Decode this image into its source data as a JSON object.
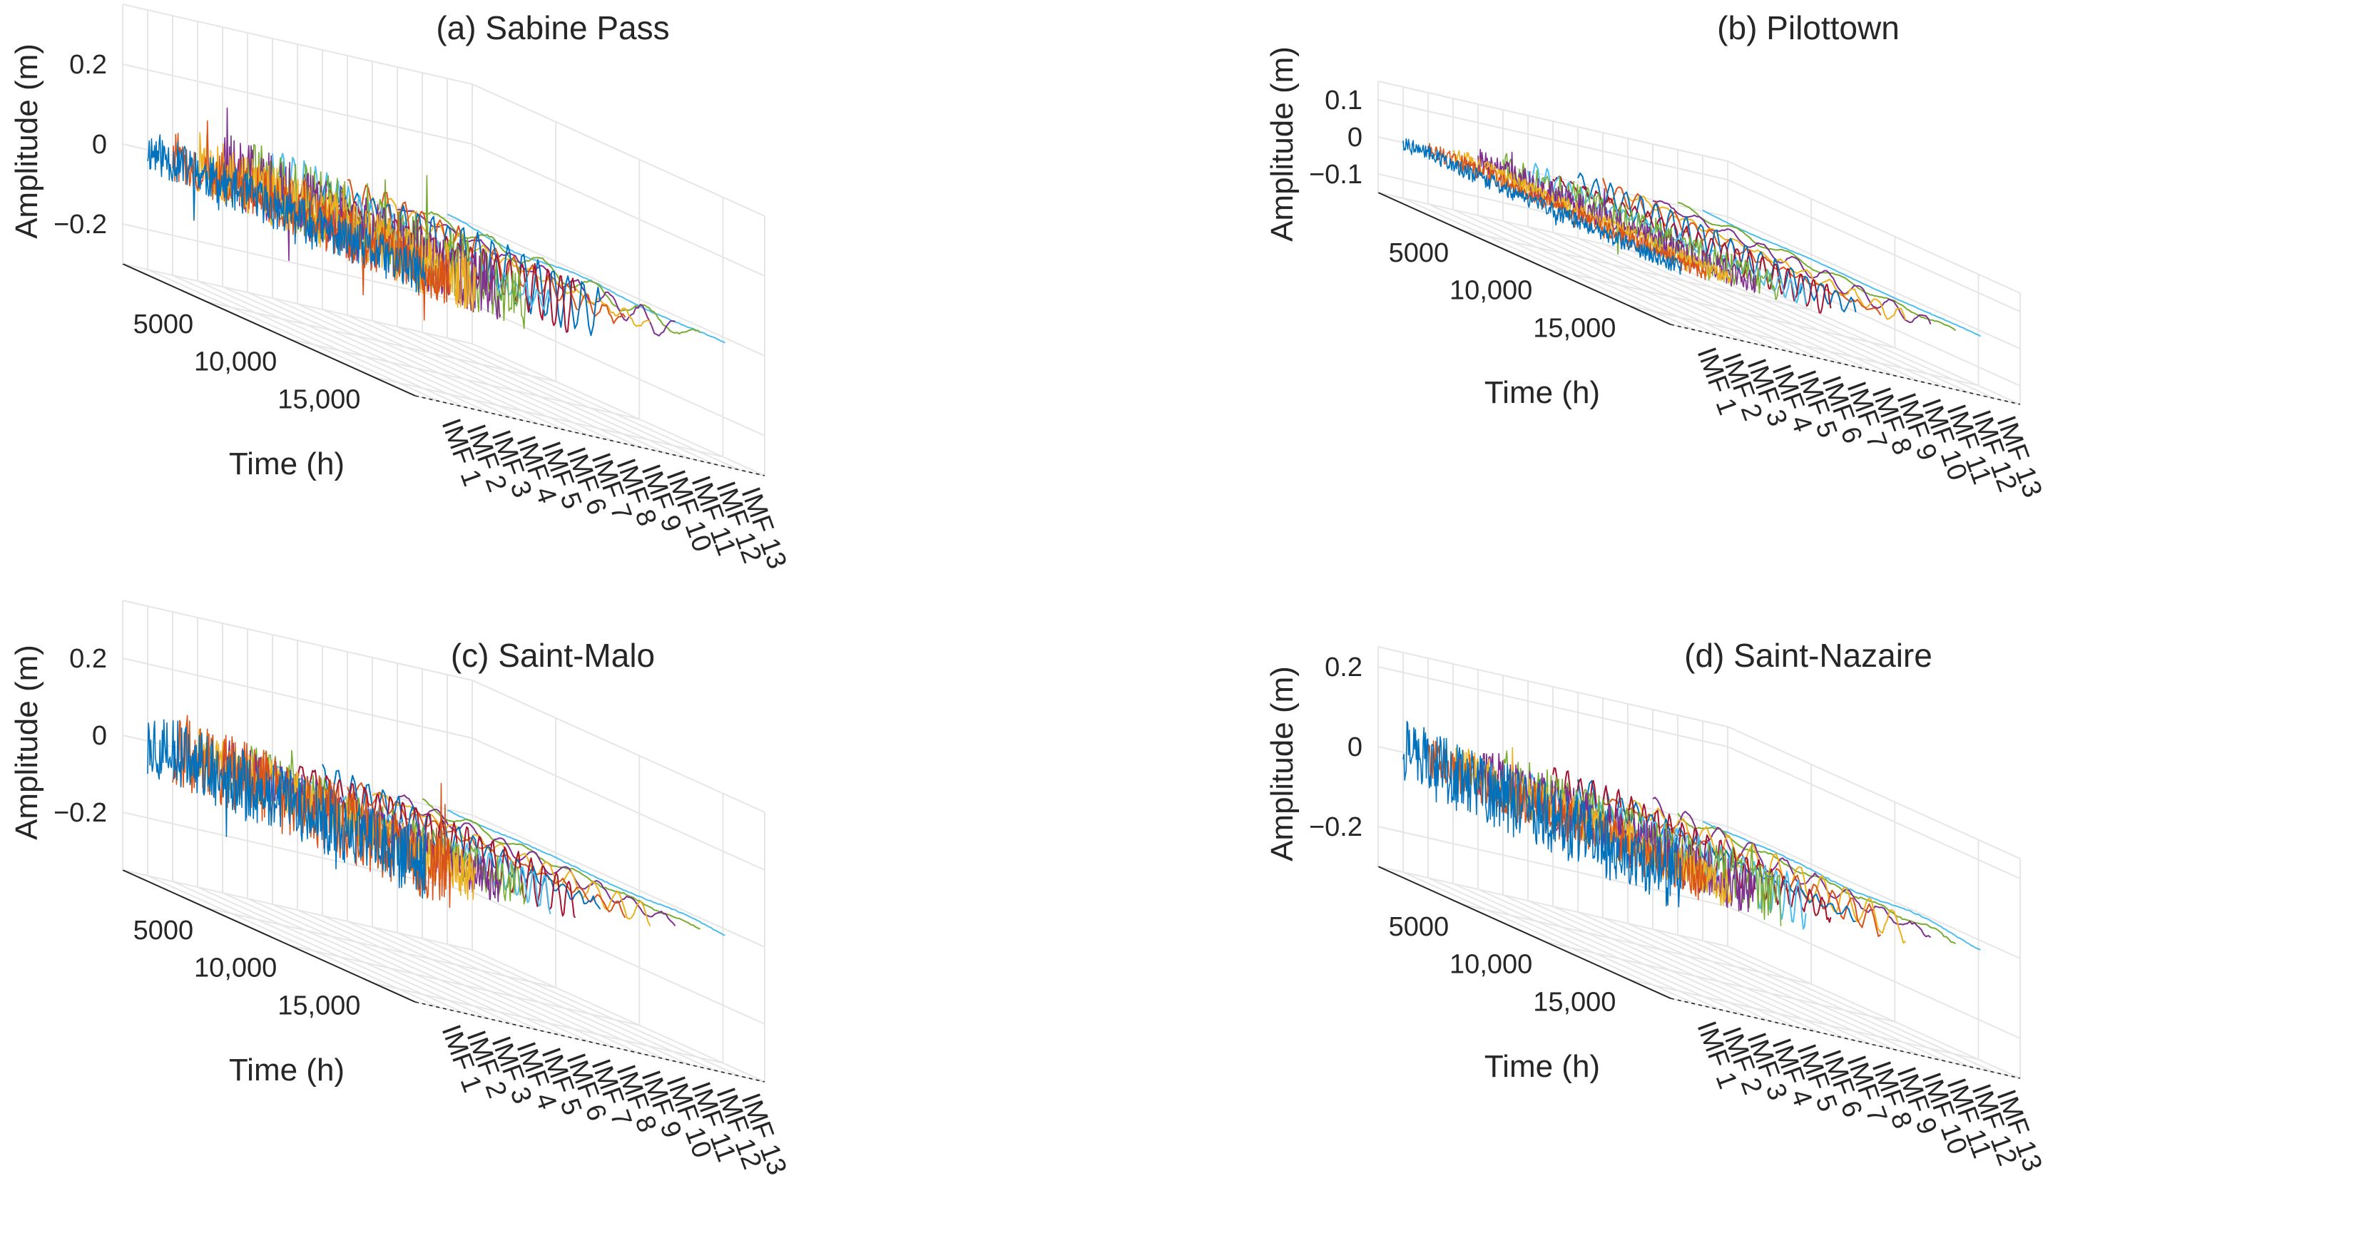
{
  "chart_data": [
    {
      "type": "line",
      "title": "(a) Sabine Pass",
      "zlabel": "Amplitude (m)",
      "xlabel": "Time (h)",
      "zticks": [
        "0.2",
        "0",
        "−0.2"
      ],
      "zrange": [
        -0.3,
        0.35
      ],
      "tticks": [
        "5000",
        "10,000",
        "15,000"
      ],
      "trange": [
        0,
        17500
      ],
      "imf_labels": [
        "IMF 1",
        "IMF 2",
        "IMF 3",
        "IMF 4",
        "IMF 5",
        "IMF 6",
        "IMF 7",
        "IMF 8",
        "IMF 9",
        "IMF 10",
        "IMF 11",
        "IMF 12",
        "IMF 13"
      ],
      "series": [
        {
          "name": "IMF 1",
          "amplitude": 0.05
        },
        {
          "name": "IMF 2",
          "amplitude": 0.06
        },
        {
          "name": "IMF 3",
          "amplitude": 0.07
        },
        {
          "name": "IMF 4",
          "amplitude": 0.08
        },
        {
          "name": "IMF 5",
          "amplitude": 0.08
        },
        {
          "name": "IMF 6",
          "amplitude": 0.09
        },
        {
          "name": "IMF 7",
          "amplitude": 0.09
        },
        {
          "name": "IMF 8",
          "amplitude": 0.07
        },
        {
          "name": "IMF 9",
          "amplitude": 0.05
        },
        {
          "name": "IMF 10",
          "amplitude": 0.04
        },
        {
          "name": "IMF 11",
          "amplitude": 0.03
        },
        {
          "name": "IMF 12",
          "amplitude": 0.02
        },
        {
          "name": "IMF 13",
          "amplitude": 0.01
        }
      ]
    },
    {
      "type": "line",
      "title": "(b) Pilottown",
      "zlabel": "Amplitude (m)",
      "xlabel": "Time (h)",
      "zticks": [
        "0.1",
        "0",
        "−0.1"
      ],
      "zrange": [
        -0.15,
        0.15
      ],
      "tticks": [
        "5000",
        "10,000",
        "15,000"
      ],
      "trange": [
        0,
        17500
      ],
      "imf_labels": [
        "IMF 1",
        "IMF 2",
        "IMF 3",
        "IMF 4",
        "IMF 5",
        "IMF 6",
        "IMF 7",
        "IMF 8",
        "IMF 9",
        "IMF 10",
        "IMF 11",
        "IMF 12",
        "IMF 13"
      ],
      "series": [
        {
          "name": "IMF 1",
          "amplitude": 0.02
        },
        {
          "name": "IMF 2",
          "amplitude": 0.02
        },
        {
          "name": "IMF 3",
          "amplitude": 0.02
        },
        {
          "name": "IMF 4",
          "amplitude": 0.03
        },
        {
          "name": "IMF 5",
          "amplitude": 0.04
        },
        {
          "name": "IMF 6",
          "amplitude": 0.05
        },
        {
          "name": "IMF 7",
          "amplitude": 0.04
        },
        {
          "name": "IMF 8",
          "amplitude": 0.04
        },
        {
          "name": "IMF 9",
          "amplitude": 0.03
        },
        {
          "name": "IMF 10",
          "amplitude": 0.03
        },
        {
          "name": "IMF 11",
          "amplitude": 0.02
        },
        {
          "name": "IMF 12",
          "amplitude": 0.01
        },
        {
          "name": "IMF 13",
          "amplitude": 0.005
        }
      ]
    },
    {
      "type": "line",
      "title": "(c) Saint-Malo",
      "zlabel": "Amplitude (m)",
      "xlabel": "Time (h)",
      "zticks": [
        "0.2",
        "0",
        "−0.2"
      ],
      "zrange": [
        -0.35,
        0.35
      ],
      "tticks": [
        "5000",
        "10,000",
        "15,000"
      ],
      "trange": [
        0,
        17500
      ],
      "imf_labels": [
        "IMF 1",
        "IMF 2",
        "IMF 3",
        "IMF 4",
        "IMF 5",
        "IMF 6",
        "IMF 7",
        "IMF 8",
        "IMF 9",
        "IMF 10",
        "IMF 11",
        "IMF 12",
        "IMF 13"
      ],
      "series": [
        {
          "name": "IMF 1",
          "amplitude": 0.08
        },
        {
          "name": "IMF 2",
          "amplitude": 0.09
        },
        {
          "name": "IMF 3",
          "amplitude": 0.06
        },
        {
          "name": "IMF 4",
          "amplitude": 0.05
        },
        {
          "name": "IMF 5",
          "amplitude": 0.05
        },
        {
          "name": "IMF 6",
          "amplitude": 0.05
        },
        {
          "name": "IMF 7",
          "amplitude": 0.06
        },
        {
          "name": "IMF 8",
          "amplitude": 0.05
        },
        {
          "name": "IMF 9",
          "amplitude": 0.04
        },
        {
          "name": "IMF 10",
          "amplitude": 0.03
        },
        {
          "name": "IMF 11",
          "amplitude": 0.02
        },
        {
          "name": "IMF 12",
          "amplitude": 0.015
        },
        {
          "name": "IMF 13",
          "amplitude": 0.01
        }
      ]
    },
    {
      "type": "line",
      "title": "(d) Saint-Nazaire",
      "zlabel": "Amplitude (m)",
      "xlabel": "Time (h)",
      "zticks": [
        "0.2",
        "0",
        "−0.2"
      ],
      "zrange": [
        -0.3,
        0.25
      ],
      "tticks": [
        "5000",
        "10,000",
        "15,000"
      ],
      "trange": [
        0,
        17500
      ],
      "imf_labels": [
        "IMF 1",
        "IMF 2",
        "IMF 3",
        "IMF 4",
        "IMF 5",
        "IMF 6",
        "IMF 7",
        "IMF 8",
        "IMF 9",
        "IMF 10",
        "IMF 11",
        "IMF 12",
        "IMF 13"
      ],
      "series": [
        {
          "name": "IMF 1",
          "amplitude": 0.08
        },
        {
          "name": "IMF 2",
          "amplitude": 0.05
        },
        {
          "name": "IMF 3",
          "amplitude": 0.05
        },
        {
          "name": "IMF 4",
          "amplitude": 0.06
        },
        {
          "name": "IMF 5",
          "amplitude": 0.06
        },
        {
          "name": "IMF 6",
          "amplitude": 0.06
        },
        {
          "name": "IMF 7",
          "amplitude": 0.06
        },
        {
          "name": "IMF 8",
          "amplitude": 0.05
        },
        {
          "name": "IMF 9",
          "amplitude": 0.04
        },
        {
          "name": "IMF 10",
          "amplitude": 0.04
        },
        {
          "name": "IMF 11",
          "amplitude": 0.03
        },
        {
          "name": "IMF 12",
          "amplitude": 0.02
        },
        {
          "name": "IMF 13",
          "amplitude": 0.01
        }
      ]
    }
  ],
  "colors": [
    "#0072BD",
    "#D95319",
    "#EDB120",
    "#7E2F8E",
    "#77AC30",
    "#4DBEEE",
    "#A2142F",
    "#0072BD",
    "#D95319",
    "#EDB120",
    "#7E2F8E",
    "#77AC30",
    "#4DBEEE"
  ]
}
